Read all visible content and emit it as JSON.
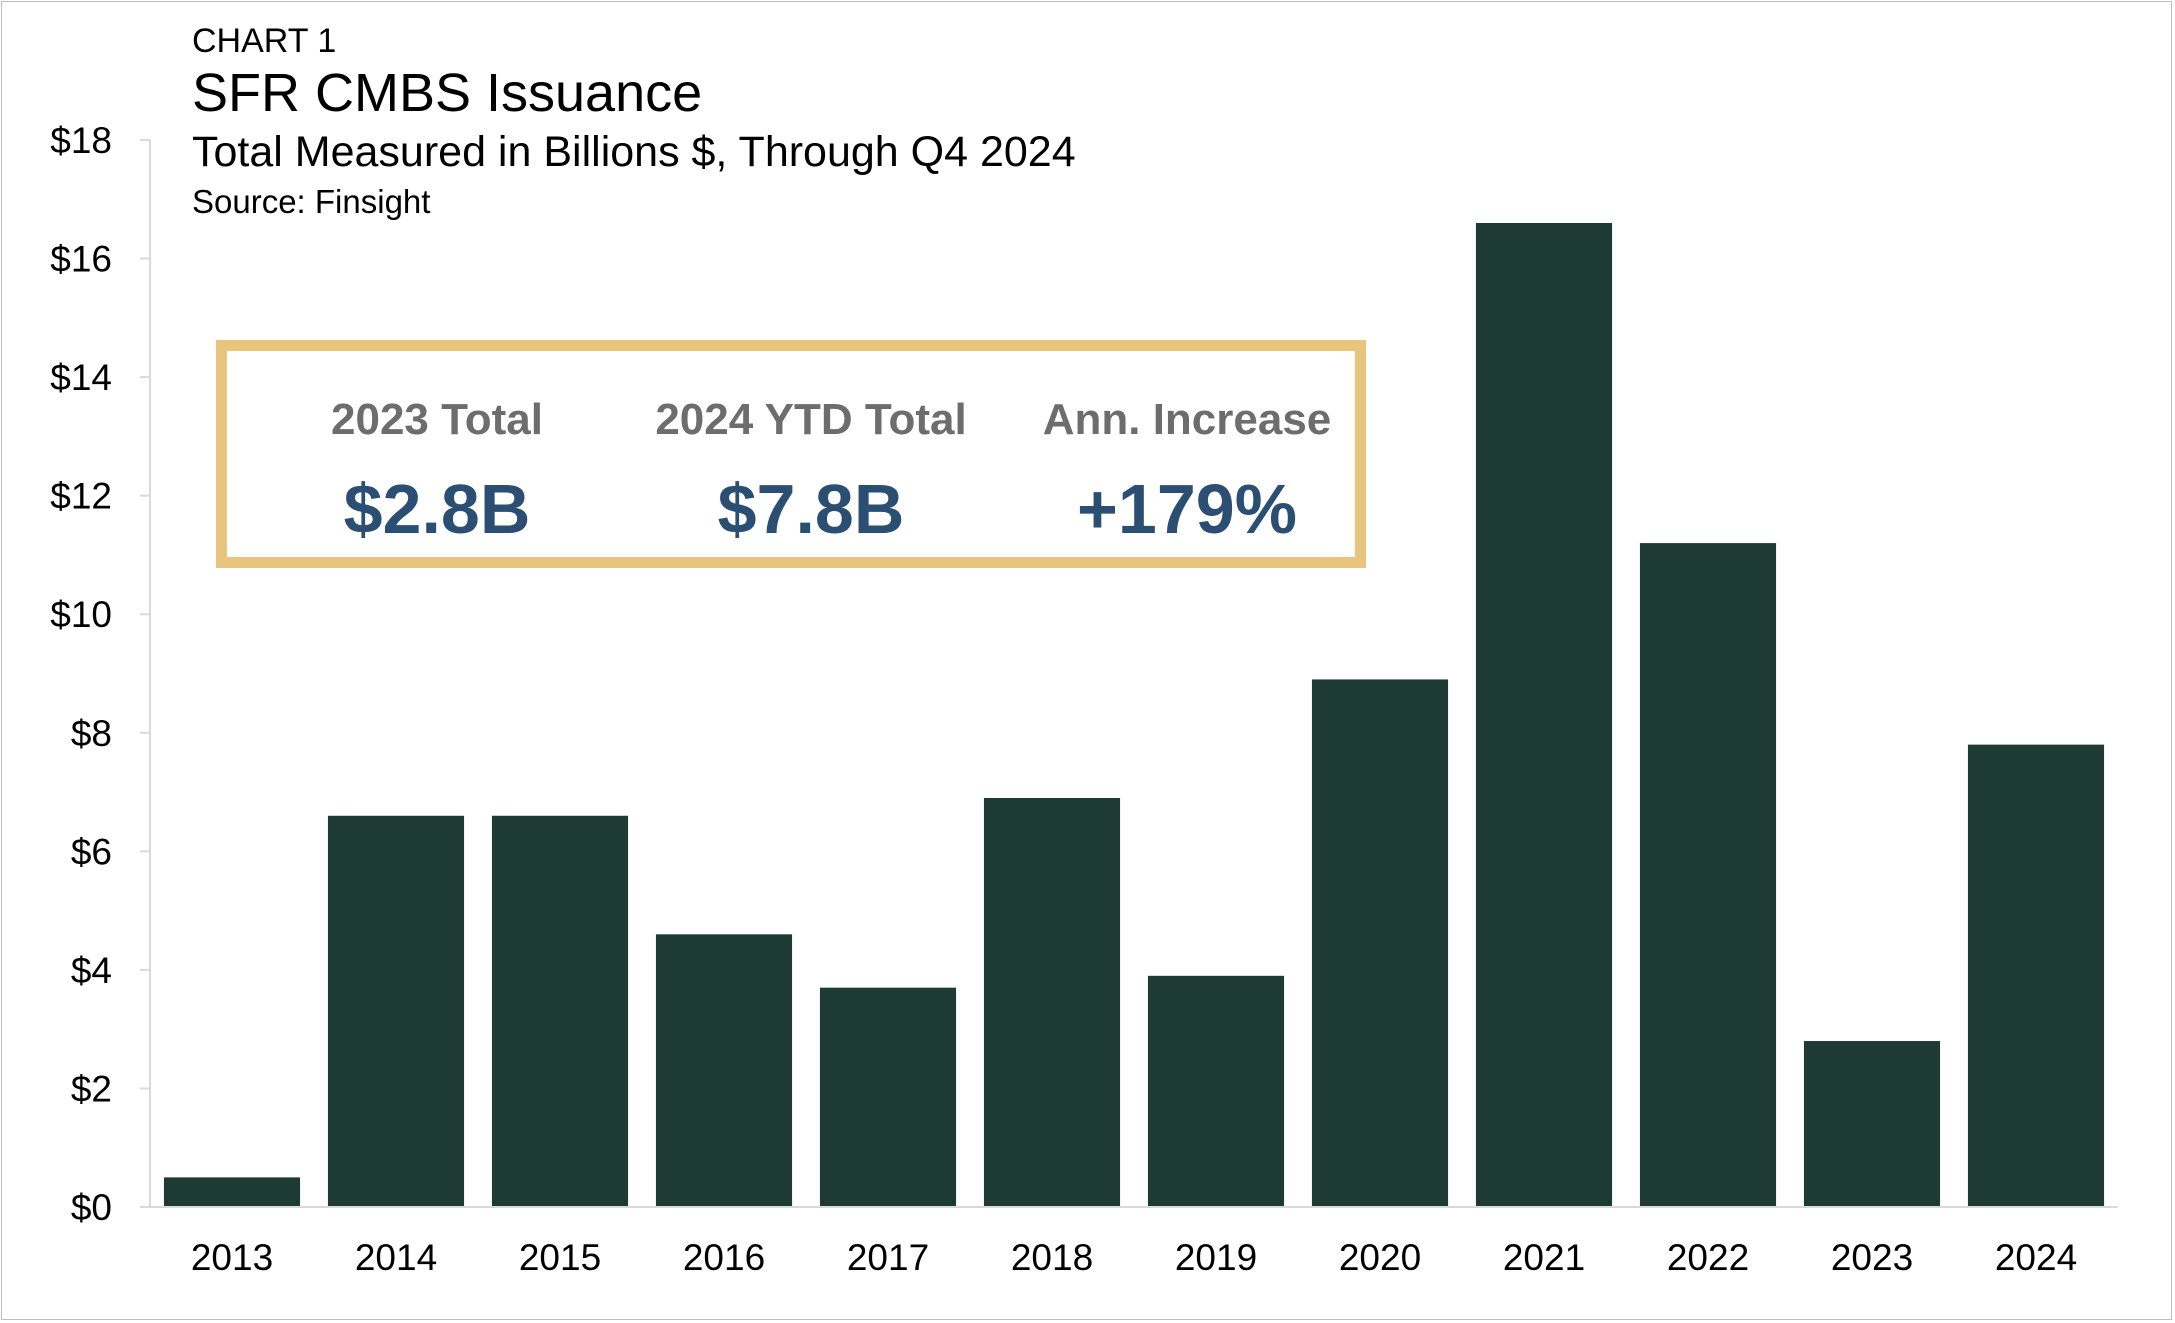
{
  "header": {
    "label": "CHART 1",
    "title": "SFR CMBS Issuance",
    "subtitle": "Total Measured in Billions $, Through Q4 2024",
    "source": "Source: Finsight"
  },
  "kpis": [
    {
      "label": "2023 Total",
      "value": "$2.8B"
    },
    {
      "label": "2024 YTD Total",
      "value": "$7.8B"
    },
    {
      "label": "Ann. Increase",
      "value": "+179%"
    }
  ],
  "colors": {
    "bar": "#1e3b33",
    "kpi_border": "#e8c47c",
    "kpi_value": "#2b4e73",
    "kpi_label": "#6d6d6d",
    "axis": "#d9d9d9"
  },
  "chart_data": {
    "type": "bar",
    "categories": [
      "2013",
      "2014",
      "2015",
      "2016",
      "2017",
      "2018",
      "2019",
      "2020",
      "2021",
      "2022",
      "2023",
      "2024"
    ],
    "values": [
      0.5,
      6.6,
      6.6,
      4.6,
      3.7,
      6.9,
      3.9,
      8.9,
      16.6,
      11.2,
      2.8,
      7.8
    ],
    "ylim": [
      0,
      18
    ],
    "yticks": [
      0,
      2,
      4,
      6,
      8,
      10,
      12,
      14,
      16,
      18
    ],
    "ytick_labels": [
      "$0",
      "$2",
      "$4",
      "$6",
      "$8",
      "$10",
      "$12",
      "$14",
      "$16",
      "$18"
    ],
    "grid": false,
    "title": "SFR CMBS Issuance",
    "xlabel": "",
    "ylabel": ""
  }
}
